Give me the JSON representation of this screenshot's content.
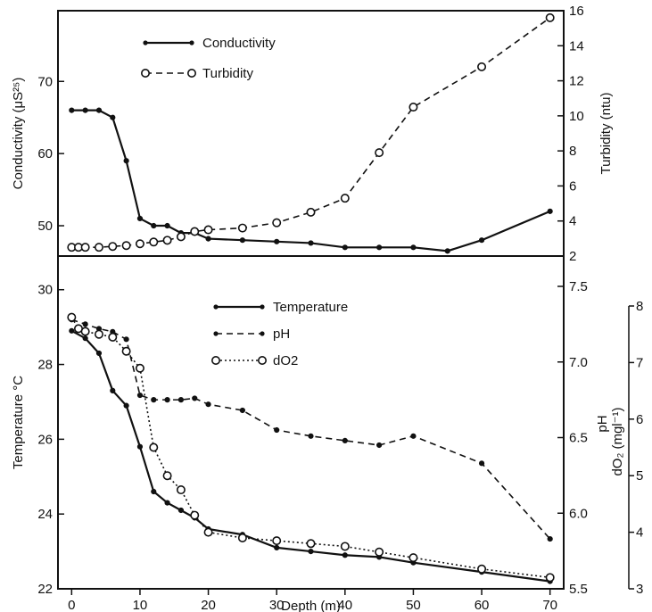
{
  "chart_data": [
    {
      "type": "line",
      "panel": "top",
      "x": [
        0,
        2,
        4,
        6,
        8,
        10,
        12,
        14,
        16,
        18,
        20,
        25,
        30,
        35,
        40,
        45,
        50,
        55,
        60,
        70
      ],
      "xlabel": "Depth (m)",
      "xlim": [
        -2,
        72
      ],
      "grid": false,
      "legend_position": "top-left",
      "series": [
        {
          "name": "Conductivity",
          "axis": "left",
          "style": "solid, filled dots",
          "x": [
            0,
            2,
            4,
            6,
            8,
            10,
            12,
            14,
            16,
            18,
            20,
            25,
            30,
            35,
            40,
            45,
            50,
            55,
            60,
            70
          ],
          "values": [
            66,
            66,
            66,
            65,
            59,
            51,
            50,
            50,
            49,
            49,
            48.2,
            48,
            47.8,
            47.6,
            47,
            47,
            47,
            46.5,
            48,
            52
          ]
        },
        {
          "name": "Turbidity",
          "axis": "right",
          "style": "dashed, open circles",
          "x": [
            0,
            1,
            2,
            4,
            6,
            8,
            10,
            12,
            14,
            16,
            18,
            20,
            25,
            30,
            35,
            40,
            45,
            50,
            60,
            70
          ],
          "values": [
            2.5,
            2.5,
            2.5,
            2.5,
            2.55,
            2.6,
            2.7,
            2.8,
            2.9,
            3.1,
            3.4,
            3.5,
            3.6,
            3.9,
            4.5,
            5.3,
            7.9,
            10.5,
            12.8,
            15.6
          ]
        }
      ],
      "axes": {
        "left": {
          "label": "Conductivity (μS²⁵)",
          "ylim": [
            45.8,
            79.8
          ],
          "ticks": [
            50,
            60,
            70
          ]
        },
        "right": {
          "label": "Turbidity (ntu)",
          "ylim": [
            2,
            16
          ],
          "ticks": [
            2,
            4,
            6,
            8,
            10,
            12,
            14,
            16
          ]
        }
      }
    },
    {
      "type": "line",
      "panel": "bottom",
      "xlabel": "Depth (m)",
      "xlim": [
        -2,
        72
      ],
      "x_ticks": [
        0,
        10,
        20,
        30,
        40,
        50,
        60,
        70
      ],
      "grid": false,
      "legend_position": "top-center",
      "series": [
        {
          "name": "Temperature",
          "axis": "left",
          "style": "solid, filled dots",
          "x": [
            0,
            2,
            4,
            6,
            8,
            10,
            12,
            14,
            16,
            18,
            20,
            25,
            30,
            35,
            40,
            45,
            50,
            60,
            70
          ],
          "values": [
            28.9,
            28.7,
            28.3,
            27.3,
            26.9,
            25.8,
            24.6,
            24.3,
            24.1,
            23.9,
            23.6,
            23.45,
            23.1,
            23,
            22.9,
            22.85,
            22.7,
            22.45,
            22.2
          ]
        },
        {
          "name": "pH",
          "axis": "right-inner",
          "style": "dashed, filled dots",
          "x": [
            0,
            2,
            4,
            6,
            8,
            10,
            12,
            14,
            16,
            18,
            20,
            25,
            30,
            35,
            40,
            45,
            50,
            60,
            70
          ],
          "values": [
            7.28,
            7.25,
            7.22,
            7.2,
            7.15,
            6.78,
            6.75,
            6.75,
            6.75,
            6.76,
            6.72,
            6.68,
            6.55,
            6.51,
            6.48,
            6.45,
            6.51,
            6.33,
            5.83
          ]
        },
        {
          "name": "dO2",
          "axis": "right-outer",
          "style": "dotted, open circles",
          "x": [
            0,
            1,
            2,
            4,
            6,
            8,
            10,
            12,
            14,
            16,
            18,
            20,
            25,
            30,
            35,
            40,
            45,
            50,
            60,
            70
          ],
          "values": [
            7.8,
            7.6,
            7.55,
            7.5,
            7.45,
            7.2,
            6.9,
            5.5,
            5.0,
            4.75,
            4.3,
            4.0,
            3.9,
            3.85,
            3.8,
            3.75,
            3.65,
            3.55,
            3.35,
            3.2
          ]
        }
      ],
      "axes": {
        "left": {
          "label": "Temperature °C",
          "ylim": [
            22,
            30.9
          ],
          "ticks": [
            22,
            24,
            26,
            28,
            30
          ]
        },
        "right-inner": {
          "label": "pH",
          "ylim": [
            5.5,
            7.5
          ],
          "ticks": [
            5.5,
            6.0,
            6.5,
            7.0,
            7.5
          ],
          "tick_labels": [
            "5.5",
            "6.0",
            "6.5",
            "7.0",
            "7.5"
          ]
        },
        "right-outer": {
          "label": "dO₂ (mgl⁻¹)",
          "ylim": [
            3,
            8
          ],
          "ticks": [
            3,
            4,
            5,
            6,
            7,
            8
          ]
        }
      }
    }
  ]
}
